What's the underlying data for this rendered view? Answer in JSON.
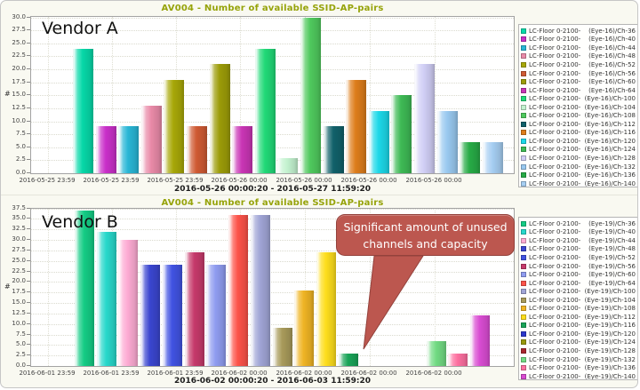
{
  "chart_data": [
    {
      "type": "bar",
      "title": "AV004 - Number of available SSID-AP-pairs",
      "vendor_label": "Vendor A",
      "ylabel": "#",
      "ylim": [
        0,
        30
      ],
      "y_tick_step": 2.5,
      "grid": "dotted",
      "legend_position": "right",
      "series_prefix": "LC-Floor 0-2100-",
      "categories": [
        "(Eye-16)/Ch-36",
        "(Eye-16)/Ch-40",
        "(Eye-16)/Ch-44",
        "(Eye-16)/Ch-48",
        "(Eye-16)/Ch-52",
        "(Eye-16)/Ch-56",
        "(Eye-16)/Ch-60",
        "(Eye-16)/Ch-64",
        "(Eye-16)/Ch-100",
        "(Eye-16)/Ch-104",
        "(Eye-16)/Ch-108",
        "(Eye-16)/Ch-112",
        "(Eye-16)/Ch-116",
        "(Eye-16)/Ch-120",
        "(Eye-16)/Ch-124",
        "(Eye-16)/Ch-128",
        "(Eye-16)/Ch-132",
        "(Eye-16)/Ch-136",
        "(Eye-16)/Ch-140"
      ],
      "values": [
        24,
        9,
        9,
        13,
        18,
        9,
        21,
        9,
        24,
        3,
        30,
        9,
        18,
        12,
        15,
        21,
        12,
        6,
        6
      ],
      "colors": [
        "#06d8a8",
        "#c92fc9",
        "#29b6d6",
        "#e98aa8",
        "#a8a808",
        "#cf5a33",
        "#9c9c08",
        "#c935b5",
        "#21d977",
        "#c3f2cf",
        "#4fc95d",
        "#11616a",
        "#dd7d1b",
        "#1cd8e8",
        "#3eba55",
        "#d0cef5",
        "#99c9f0",
        "#27ab46",
        "#a6cef2"
      ],
      "y_tick_labels": [
        "30.0",
        "27.5",
        "25.0",
        "22.5",
        "20.0",
        "17.5",
        "15.0",
        "12.5",
        "10.0",
        "7.5",
        "5.0",
        "2.5",
        "0.0"
      ],
      "x_tick_labels": [
        "2016-05-25 23:59",
        "2016-05-25 23:59",
        "2016-05-25 23:59",
        "2016-05-26 00:00",
        "2016-05-26 00:00",
        "2016-05-26 00:00",
        "2016-05-26 00:00"
      ],
      "x_range_label": "2016-05-26 00:00:20 - 2016-05-27 11:59:20"
    },
    {
      "type": "bar",
      "title": "AV004 - Number of available SSID-AP-pairs",
      "vendor_label": "Vendor B",
      "ylabel": "#",
      "ylim": [
        0,
        37.5
      ],
      "y_tick_step": 2.5,
      "grid": "dotted",
      "legend_position": "right",
      "series_prefix": "LC-Floor 0-2100-",
      "categories": [
        "(Eye-19)/Ch-36",
        "(Eye-19)/Ch-40",
        "(Eye-19)/Ch-44",
        "(Eye-19)/Ch-48",
        "(Eye-19)/Ch-52",
        "(Eye-19)/Ch-56",
        "(Eye-19)/Ch-60",
        "(Eye-19)/Ch-64",
        "(Eye-19)/Ch-100",
        "(Eye-19)/Ch-104",
        "(Eye-19)/Ch-108",
        "(Eye-19)/Ch-112",
        "(Eye-19)/Ch-116",
        "(Eye-19)/Ch-120",
        "(Eye-19)/Ch-124",
        "(Eye-19)/Ch-128",
        "(Eye-19)/Ch-132",
        "(Eye-19)/Ch-136",
        "(Eye-19)/Ch-140"
      ],
      "values": [
        37,
        32,
        30,
        24,
        24,
        27,
        24,
        36,
        36,
        9,
        18,
        27,
        3,
        0,
        0,
        0,
        6,
        3,
        12
      ],
      "colors": [
        "#14cc85",
        "#27d8cb",
        "#fdabd3",
        "#3a46d0",
        "#4153e2",
        "#c63a6b",
        "#8f9cf0",
        "#fd5349",
        "#a0a5d6",
        "#a89a5a",
        "#efb424",
        "#fede1c",
        "#19a458",
        "#2c38cc",
        "#98980c",
        "#a8272e",
        "#72db83",
        "#fd70a0",
        "#d94cd2"
      ],
      "y_tick_labels": [
        "37.5",
        "35.0",
        "32.5",
        "30.0",
        "27.5",
        "25.0",
        "22.5",
        "20.0",
        "17.5",
        "15.0",
        "12.5",
        "10.0",
        "7.5",
        "5.0",
        "2.5",
        "0.0"
      ],
      "x_tick_labels": [
        "2016-06-01 23:59",
        "2016-06-01 23:59",
        "2016-06-01 23:59",
        "2016-06-02 00:00",
        "2016-06-02 00:00",
        "2016-06-02 00:00",
        "2016-06-02 00:00"
      ],
      "x_range_label": "2016-06-02 00:00:20 - 2016-06-03 11:59:20",
      "annotation": {
        "lines": [
          "Significant amount of unused",
          "channels and capacity"
        ],
        "fill_color": "#bc574f",
        "text_color": "#ffffff"
      }
    }
  ]
}
